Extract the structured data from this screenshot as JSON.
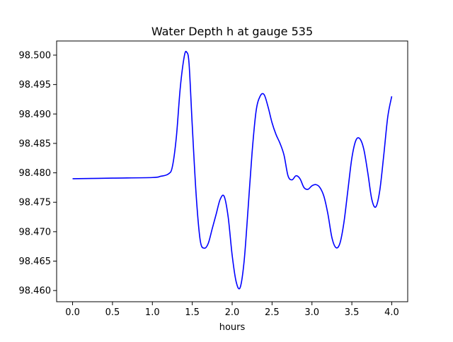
{
  "chart_data": {
    "type": "line",
    "title": "Water Depth h at gauge 535",
    "xlabel": "hours",
    "ylabel": "",
    "xlim": [
      -0.2,
      4.2
    ],
    "ylim": [
      98.4581,
      98.5024
    ],
    "xticks": [
      0.0,
      0.5,
      1.0,
      1.5,
      2.0,
      2.5,
      3.0,
      3.5,
      4.0
    ],
    "xtick_labels": [
      "0.0",
      "0.5",
      "1.0",
      "1.5",
      "2.0",
      "2.5",
      "3.0",
      "3.5",
      "4.0"
    ],
    "yticks": [
      98.46,
      98.465,
      98.47,
      98.475,
      98.48,
      98.485,
      98.49,
      98.495,
      98.5
    ],
    "ytick_labels": [
      "98.460",
      "98.465",
      "98.470",
      "98.475",
      "98.480",
      "98.485",
      "98.490",
      "98.495",
      "98.500"
    ],
    "grid": false,
    "legend": "none",
    "series": [
      {
        "color": "#0000ff",
        "x": [
          0.0,
          0.5,
          1.0,
          1.1,
          1.2,
          1.25,
          1.3,
          1.35,
          1.4,
          1.43,
          1.46,
          1.5,
          1.55,
          1.6,
          1.65,
          1.7,
          1.75,
          1.8,
          1.85,
          1.9,
          1.95,
          2.0,
          2.05,
          2.1,
          2.15,
          2.2,
          2.25,
          2.3,
          2.35,
          2.4,
          2.45,
          2.5,
          2.55,
          2.6,
          2.65,
          2.7,
          2.75,
          2.8,
          2.85,
          2.9,
          2.95,
          3.0,
          3.05,
          3.1,
          3.15,
          3.2,
          3.25,
          3.3,
          3.35,
          3.4,
          3.45,
          3.5,
          3.55,
          3.6,
          3.65,
          3.7,
          3.75,
          3.8,
          3.85,
          3.9,
          3.95,
          4.0
        ],
        "y": [
          98.479,
          98.4791,
          98.4792,
          98.4794,
          98.4798,
          98.481,
          98.486,
          98.4945,
          98.4998,
          98.5005,
          98.4985,
          98.488,
          98.476,
          98.4685,
          98.4672,
          98.468,
          98.4705,
          98.473,
          98.4755,
          98.476,
          98.4725,
          98.466,
          98.4615,
          98.4605,
          98.465,
          98.474,
          98.4835,
          98.4905,
          98.493,
          98.4933,
          98.4912,
          98.4885,
          98.4865,
          98.485,
          98.483,
          98.4795,
          98.4788,
          98.4795,
          98.479,
          98.4775,
          98.4772,
          98.4778,
          98.478,
          98.4775,
          98.476,
          98.473,
          98.469,
          98.4673,
          98.468,
          98.4715,
          98.477,
          98.4825,
          98.4855,
          98.4858,
          98.484,
          98.48,
          98.4755,
          98.4742,
          98.477,
          98.483,
          98.4895,
          98.493
        ]
      }
    ]
  }
}
